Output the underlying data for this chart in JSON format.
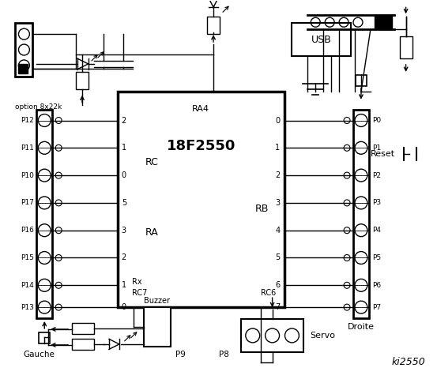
{
  "title": "ki2550",
  "bg_color": "#ffffff",
  "fig_width": 5.53,
  "fig_height": 4.8,
  "ic_label": "18F2550",
  "ic_sublabel": "RA4",
  "rc_label": "RC",
  "ra_label": "RA",
  "rb_label": "RB",
  "left_pins_labels": [
    "P12",
    "P11",
    "P10",
    "P17",
    "P16",
    "P15",
    "P14",
    "P13"
  ],
  "right_pins_labels": [
    "P0",
    "P1",
    "P2",
    "P3",
    "P4",
    "P5",
    "P6",
    "P7"
  ],
  "rc_pin_numbers": [
    "2",
    "1",
    "0"
  ],
  "ra_pin_numbers": [
    "5",
    "3",
    "2",
    "1",
    "0"
  ],
  "rb_pin_numbers": [
    "0",
    "1",
    "2",
    "3",
    "4",
    "5",
    "6",
    "7"
  ],
  "usb_label": "USB",
  "reset_label": "Reset",
  "droite_label": "Droite",
  "gauche_label": "Gauche",
  "option_label": "option 8x22k",
  "buzzer_label": "Buzzer",
  "p9_label": "P9",
  "p8_label": "P8",
  "servo_label": "Servo",
  "rx_label": "Rx",
  "rc7_label": "RC7",
  "rc6_label": "RC6"
}
